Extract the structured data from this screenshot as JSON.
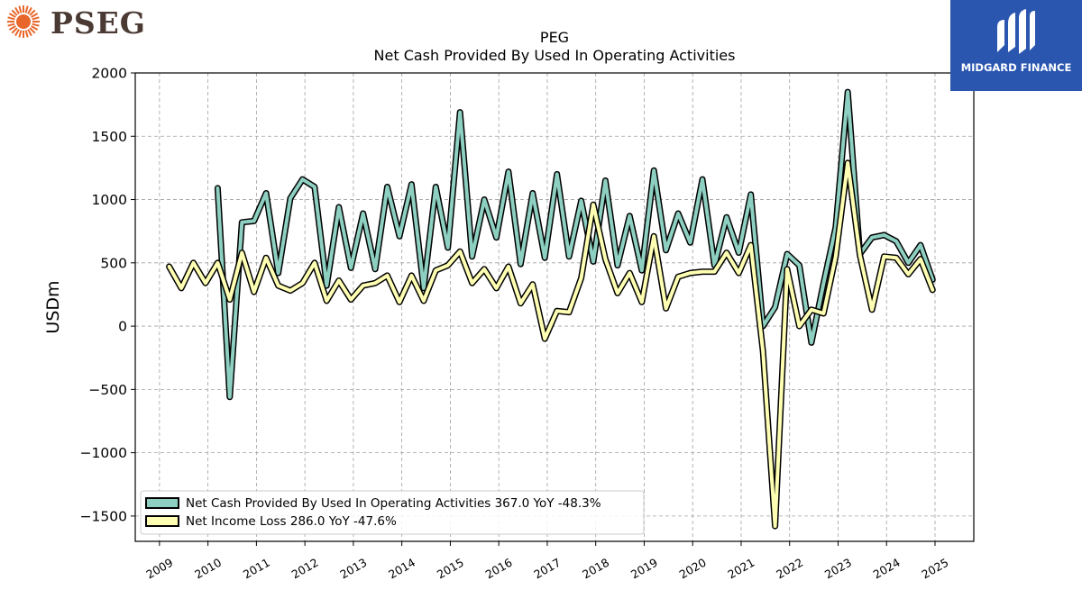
{
  "brand": {
    "name": "PSEG",
    "icon": "sunburst-logo-icon",
    "color": "#e8662a"
  },
  "watermark": {
    "name": "MIDGARD FINANCE",
    "icon": "midgard-logo-icon",
    "bg_color": "#2a56b0"
  },
  "chart_data": {
    "type": "line",
    "title": "PEG",
    "subtitle": "Net Cash Provided By Used In Operating Activities",
    "ylabel": "USDm",
    "xlabel": "",
    "ylim": [
      -1700,
      2000
    ],
    "xlim": [
      2008.5,
      2025.8
    ],
    "yticks": [
      -1500,
      -1000,
      -500,
      0,
      500,
      1000,
      1500,
      2000
    ],
    "ytick_labels": [
      "−1500",
      "−1000",
      "−500",
      "0",
      "500",
      "1000",
      "1500",
      "2000"
    ],
    "xticks": [
      "2009",
      "2010",
      "2011",
      "2012",
      "2013",
      "2014",
      "2015",
      "2016",
      "2017",
      "2018",
      "2019",
      "2020",
      "2021",
      "2022",
      "2023",
      "2024",
      "2025"
    ],
    "grid": true,
    "legend_position": "lower-left",
    "series": [
      {
        "name": "Net Cash Provided By Used In Operating Activities  367.0 YoY -48.3%",
        "color": "#8dcfc0",
        "x": [
          2010.2,
          2010.45,
          2010.7,
          2010.95,
          2011.2,
          2011.45,
          2011.7,
          2011.95,
          2012.2,
          2012.45,
          2012.7,
          2012.95,
          2013.2,
          2013.45,
          2013.7,
          2013.95,
          2014.2,
          2014.45,
          2014.7,
          2014.95,
          2015.2,
          2015.45,
          2015.7,
          2015.95,
          2016.2,
          2016.45,
          2016.7,
          2016.95,
          2017.2,
          2017.45,
          2017.7,
          2017.95,
          2018.2,
          2018.45,
          2018.7,
          2018.95,
          2019.2,
          2019.45,
          2019.7,
          2019.95,
          2020.2,
          2020.45,
          2020.7,
          2020.95,
          2021.2,
          2021.45,
          2021.7,
          2021.95,
          2022.2,
          2022.45,
          2022.7,
          2022.95,
          2023.2,
          2023.45,
          2023.7,
          2023.95,
          2024.2,
          2024.45,
          2024.7,
          2024.95
        ],
        "values": [
          1090,
          -560,
          820,
          830,
          1050,
          420,
          1010,
          1160,
          1100,
          320,
          940,
          460,
          890,
          450,
          1100,
          710,
          1120,
          300,
          1100,
          620,
          1690,
          550,
          1000,
          700,
          1220,
          490,
          1050,
          540,
          1200,
          550,
          990,
          510,
          1150,
          480,
          870,
          440,
          1230,
          600,
          890,
          660,
          1160,
          480,
          860,
          580,
          1040,
          0,
          150,
          570,
          480,
          -130,
          340,
          780,
          1850,
          570,
          700,
          720,
          670,
          500,
          640,
          367
        ]
      },
      {
        "name": "Net Income Loss  286.0 YoY -47.6%",
        "color": "#ffffb3",
        "x": [
          2009.2,
          2009.45,
          2009.7,
          2009.95,
          2010.2,
          2010.45,
          2010.7,
          2010.95,
          2011.2,
          2011.45,
          2011.7,
          2011.95,
          2012.2,
          2012.45,
          2012.7,
          2012.95,
          2013.2,
          2013.45,
          2013.7,
          2013.95,
          2014.2,
          2014.45,
          2014.7,
          2014.95,
          2015.2,
          2015.45,
          2015.7,
          2015.95,
          2016.2,
          2016.45,
          2016.7,
          2016.95,
          2017.2,
          2017.45,
          2017.7,
          2017.95,
          2018.2,
          2018.45,
          2018.7,
          2018.95,
          2019.2,
          2019.45,
          2019.7,
          2019.95,
          2020.2,
          2020.45,
          2020.7,
          2020.95,
          2021.2,
          2021.45,
          2021.7,
          2021.95,
          2022.2,
          2022.45,
          2022.7,
          2022.95,
          2023.2,
          2023.45,
          2023.7,
          2023.95,
          2024.2,
          2024.45,
          2024.7,
          2024.95
        ],
        "values": [
          470,
          300,
          500,
          340,
          500,
          210,
          580,
          270,
          540,
          320,
          280,
          340,
          500,
          200,
          360,
          210,
          320,
          340,
          400,
          190,
          400,
          200,
          440,
          480,
          590,
          340,
          450,
          300,
          470,
          180,
          330,
          -100,
          120,
          110,
          380,
          960,
          530,
          260,
          420,
          190,
          710,
          140,
          390,
          420,
          430,
          430,
          580,
          420,
          640,
          -200,
          -1580,
          450,
          0,
          130,
          100,
          550,
          1290,
          560,
          130,
          550,
          540,
          410,
          530,
          286
        ]
      }
    ]
  }
}
